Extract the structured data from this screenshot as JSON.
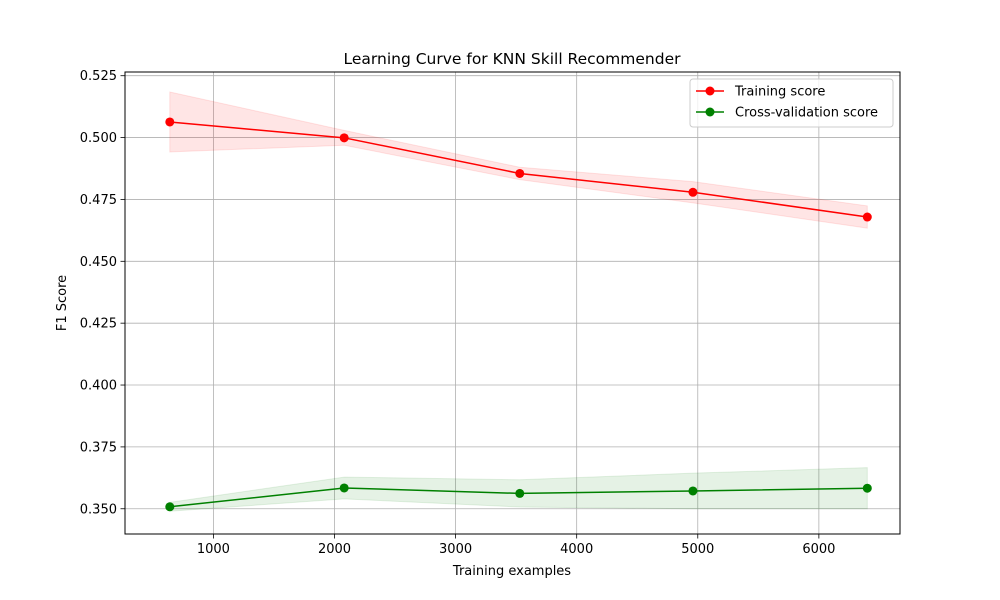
{
  "chart_data": {
    "type": "line",
    "title": "Learning Curve for KNN Skill Recommender",
    "xlabel": "Training examples",
    "ylabel": "F1 Score",
    "xlim": [
      270,
      6670
    ],
    "ylim": [
      0.3398,
      0.5265
    ],
    "xticks": [
      1000,
      2000,
      3000,
      4000,
      5000,
      6000
    ],
    "xtick_labels": [
      "1000",
      "2000",
      "3000",
      "4000",
      "5000",
      "6000"
    ],
    "yticks": [
      0.35,
      0.375,
      0.4,
      0.425,
      0.45,
      0.475,
      0.5,
      0.525
    ],
    "ytick_labels": [
      "0.350",
      "0.375",
      "0.400",
      "0.425",
      "0.450",
      "0.475",
      "0.500",
      "0.525"
    ],
    "grid": true,
    "legend_position": "top-right",
    "x": [
      640,
      2080,
      3530,
      4960,
      6400
    ],
    "series": [
      {
        "name": "Training score",
        "color": "#ff0000",
        "values": [
          0.5063,
          0.4999,
          0.4855,
          0.4779,
          0.4679
        ],
        "band_lower": [
          0.4942,
          0.4969,
          0.483,
          0.4736,
          0.4634
        ],
        "band_upper": [
          0.5184,
          0.5029,
          0.488,
          0.4822,
          0.4724
        ]
      },
      {
        "name": "Cross-validation score",
        "color": "#008000",
        "values": [
          0.3508,
          0.3584,
          0.3562,
          0.3572,
          0.3583
        ],
        "band_lower": [
          0.349,
          0.354,
          0.3507,
          0.35,
          0.35
        ],
        "band_upper": [
          0.3526,
          0.3628,
          0.3617,
          0.3644,
          0.3666
        ]
      }
    ]
  }
}
